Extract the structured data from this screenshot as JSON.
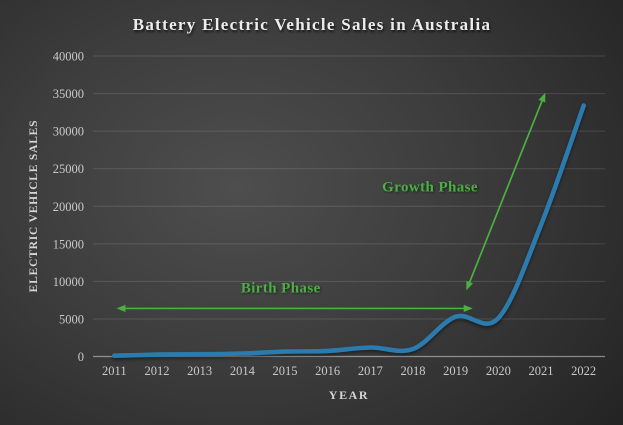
{
  "colors": {
    "background_center": "#4e4e4e",
    "background_edge": "#242424",
    "line": "#2b7bae",
    "annotation_green": "#4bb042",
    "gridline": "rgba(255,255,255,0.13)",
    "axis_line": "rgba(255,255,255,0.45)",
    "tick_text": "#c9c9c9",
    "title_text": "#ededed"
  },
  "chart_data": {
    "type": "line",
    "title": "Battery Electric Vehicle Sales in Australia",
    "xlabel": "YEAR",
    "ylabel": "ELECTRIC VEHICLE SALES",
    "categories": [
      "2011",
      "2012",
      "2013",
      "2014",
      "2015",
      "2016",
      "2017",
      "2018",
      "2019",
      "2020",
      "2021",
      "2022"
    ],
    "values": [
      100,
      250,
      300,
      400,
      650,
      750,
      1200,
      1000,
      5300,
      5100,
      17500,
      33400
    ],
    "ylim": [
      0,
      40000
    ],
    "ytick_interval": 5000,
    "ytick_labels": [
      "0",
      "5000",
      "10000",
      "15000",
      "20000",
      "25000",
      "30000",
      "35000",
      "40000"
    ],
    "grid": true,
    "legend": false,
    "line_smooth": true,
    "annotations": [
      {
        "text": "Birth Phase",
        "arrow": {
          "from_year": 2011.05,
          "from_value": 6400,
          "to_year": 2019.4,
          "to_value": 6400,
          "double_headed": true
        },
        "label_at": {
          "year": 2014.9,
          "value": 9200
        }
      },
      {
        "text": "Growth Phase",
        "arrow": {
          "from_year": 2019.25,
          "from_value": 8800,
          "to_year": 2021.1,
          "to_value": 35100,
          "double_headed": true
        },
        "label_at": {
          "year": 2018.4,
          "value": 22600
        }
      }
    ]
  }
}
